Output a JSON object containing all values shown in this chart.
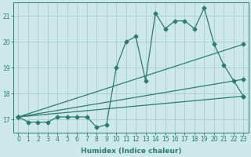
{
  "xlabel": "Humidex (Indice chaleur)",
  "ylabel": "",
  "xlim": [
    -0.5,
    23.5
  ],
  "ylim": [
    16.5,
    21.5
  ],
  "yticks": [
    17,
    18,
    19,
    20,
    21
  ],
  "xticks": [
    0,
    1,
    2,
    3,
    4,
    5,
    6,
    7,
    8,
    9,
    10,
    11,
    12,
    13,
    14,
    15,
    16,
    17,
    18,
    19,
    20,
    21,
    22,
    23
  ],
  "bg_color": "#cce8e8",
  "grid_color": "#aacccc",
  "line_color": "#2e7b6e",
  "main_line": {
    "x": [
      0,
      1,
      2,
      3,
      4,
      5,
      6,
      7,
      8,
      9,
      10,
      11,
      12,
      13,
      14,
      15,
      16,
      17,
      18,
      19,
      20,
      21,
      22,
      23
    ],
    "y": [
      17.1,
      16.9,
      16.9,
      16.9,
      17.1,
      17.1,
      17.1,
      17.1,
      16.7,
      16.8,
      19.0,
      20.0,
      20.2,
      18.5,
      21.1,
      20.5,
      20.8,
      20.8,
      20.5,
      21.3,
      19.9,
      19.1,
      18.5,
      17.9
    ]
  },
  "straight_lines": [
    {
      "x0": 0,
      "y0": 17.1,
      "x1": 23,
      "y1": 19.9
    },
    {
      "x0": 0,
      "y0": 17.1,
      "x1": 23,
      "y1": 18.55
    },
    {
      "x0": 0,
      "y0": 17.1,
      "x1": 23,
      "y1": 17.9
    }
  ]
}
